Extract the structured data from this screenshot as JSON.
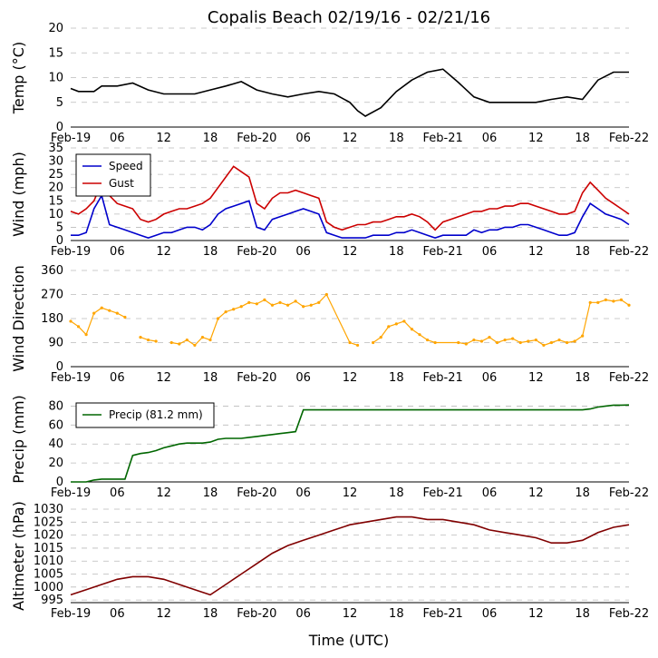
{
  "title": "Copalis Beach 02/19/16 - 02/21/16",
  "xlabel": "Time (UTC)",
  "x_tick_labels": [
    "Feb-19",
    "06",
    "12",
    "18",
    "Feb-20",
    "06",
    "12",
    "18",
    "Feb-21",
    "06",
    "12",
    "18",
    "Feb-22"
  ],
  "chart_data": [
    {
      "type": "line",
      "ylabel": "Temp (°C)",
      "ylim": [
        0,
        20
      ],
      "yticks": [
        0,
        5,
        10,
        15,
        20
      ],
      "grid": true,
      "x_units": "hours since Feb-19 00:00 UTC",
      "series": [
        {
          "color": "#000000",
          "x": [
            0,
            1,
            3,
            4,
            6,
            8,
            10,
            12,
            14,
            16,
            18,
            20,
            22,
            24,
            26,
            28,
            30,
            32,
            34,
            36,
            37,
            38,
            40,
            42,
            44,
            46,
            48,
            50,
            52,
            54,
            56,
            58,
            60,
            62,
            64,
            66,
            68,
            70,
            72
          ],
          "y": [
            7.8,
            7.2,
            7.2,
            8.3,
            8.3,
            8.9,
            7.5,
            6.7,
            6.7,
            6.7,
            7.5,
            8.3,
            9.2,
            7.5,
            6.7,
            6.1,
            6.7,
            7.2,
            6.7,
            5,
            3.3,
            2.2,
            3.9,
            7.2,
            9.5,
            11.1,
            11.7,
            9,
            6.1,
            5,
            5,
            5,
            5,
            5.6,
            6.1,
            5.6,
            9.5,
            11.1,
            11.1
          ]
        }
      ]
    },
    {
      "type": "line",
      "ylabel": "Wind (mph)",
      "ylim": [
        0,
        35
      ],
      "yticks": [
        0,
        5,
        10,
        15,
        20,
        25,
        30,
        35
      ],
      "grid": true,
      "legend": "upper-left",
      "series": [
        {
          "name": "Speed",
          "color": "#0000cc",
          "x": [
            0,
            1,
            2,
            3,
            4,
            5,
            6,
            7,
            8,
            9,
            10,
            11,
            12,
            13,
            14,
            15,
            16,
            17,
            18,
            19,
            20,
            21,
            22,
            23,
            24,
            25,
            26,
            27,
            28,
            29,
            30,
            31,
            32,
            33,
            34,
            35,
            36,
            37,
            38,
            39,
            40,
            41,
            42,
            43,
            44,
            45,
            46,
            47,
            48,
            49,
            50,
            51,
            52,
            53,
            54,
            55,
            56,
            57,
            58,
            59,
            60,
            61,
            62,
            63,
            64,
            65,
            66,
            67,
            68,
            69,
            70,
            71,
            72
          ],
          "y": [
            2,
            2,
            3,
            12,
            17,
            6,
            5,
            4,
            3,
            2,
            1,
            2,
            3,
            3,
            4,
            5,
            5,
            4,
            6,
            10,
            12,
            13,
            14,
            15,
            5,
            4,
            8,
            9,
            10,
            11,
            12,
            11,
            10,
            3,
            2,
            1,
            1,
            1,
            1,
            2,
            2,
            2,
            3,
            3,
            4,
            3,
            2,
            1,
            2,
            2,
            2,
            2,
            4,
            3,
            4,
            4,
            5,
            5,
            6,
            6,
            5,
            4,
            3,
            2,
            2,
            3,
            9,
            14,
            12,
            10,
            9,
            8,
            6
          ]
        },
        {
          "name": "Gust",
          "color": "#cc0000",
          "x": [
            0,
            1,
            2,
            3,
            4,
            5,
            6,
            7,
            8,
            9,
            10,
            11,
            12,
            13,
            14,
            15,
            16,
            17,
            18,
            19,
            20,
            21,
            22,
            23,
            24,
            25,
            26,
            27,
            28,
            29,
            30,
            31,
            32,
            33,
            34,
            35,
            36,
            37,
            38,
            39,
            40,
            41,
            42,
            43,
            44,
            45,
            46,
            47,
            48,
            49,
            50,
            51,
            52,
            53,
            54,
            55,
            56,
            57,
            58,
            59,
            60,
            61,
            62,
            63,
            64,
            65,
            66,
            67,
            68,
            69,
            70,
            71,
            72
          ],
          "y": [
            11,
            10,
            12,
            15,
            22,
            17,
            14,
            13,
            12,
            8,
            7,
            8,
            10,
            11,
            12,
            12,
            13,
            14,
            16,
            20,
            24,
            28,
            26,
            24,
            14,
            12,
            16,
            18,
            18,
            19,
            18,
            17,
            16,
            7,
            5,
            4,
            5,
            6,
            6,
            7,
            7,
            8,
            9,
            9,
            10,
            9,
            7,
            4,
            7,
            8,
            9,
            10,
            11,
            11,
            12,
            12,
            13,
            13,
            14,
            14,
            13,
            12,
            11,
            10,
            10,
            11,
            18,
            22,
            19,
            16,
            14,
            12,
            10
          ]
        }
      ]
    },
    {
      "type": "scatter",
      "ylabel": "Wind Direction",
      "ylim": [
        0,
        360
      ],
      "yticks": [
        0,
        90,
        180,
        270,
        360
      ],
      "grid": true,
      "series": [
        {
          "color": "#ffa500",
          "x": [
            0,
            1,
            2,
            3,
            4,
            5,
            6,
            7,
            8,
            9,
            10,
            11,
            12,
            13,
            14,
            15,
            16,
            17,
            18,
            19,
            20,
            21,
            22,
            23,
            24,
            25,
            26,
            27,
            28,
            29,
            30,
            31,
            32,
            33,
            36,
            37,
            38,
            39,
            40,
            41,
            42,
            43,
            44,
            45,
            46,
            47,
            50,
            51,
            52,
            53,
            54,
            55,
            56,
            57,
            58,
            59,
            60,
            61,
            62,
            63,
            64,
            65,
            66,
            67,
            68,
            69,
            70,
            71,
            72
          ],
          "y": [
            170,
            150,
            120,
            200,
            220,
            210,
            200,
            185,
            null,
            110,
            100,
            95,
            null,
            90,
            85,
            100,
            80,
            110,
            100,
            180,
            205,
            215,
            225,
            240,
            235,
            250,
            230,
            240,
            230,
            245,
            225,
            230,
            240,
            270,
            90,
            80,
            null,
            90,
            110,
            150,
            160,
            170,
            140,
            120,
            100,
            90,
            90,
            85,
            100,
            95,
            110,
            90,
            100,
            105,
            90,
            95,
            100,
            80,
            90,
            100,
            90,
            95,
            115,
            240,
            240,
            250,
            245,
            250,
            230
          ]
        }
      ]
    },
    {
      "type": "line",
      "ylabel": "Precip (mm)",
      "ylim": [
        0,
        90
      ],
      "yticks": [
        0,
        20,
        40,
        60,
        80
      ],
      "grid": true,
      "legend": "upper-left",
      "series": [
        {
          "name": "Precip (81.2 mm)",
          "color": "#006600",
          "x": [
            0,
            2,
            3,
            4,
            5,
            6,
            7,
            8,
            9,
            10,
            11,
            12,
            13,
            14,
            15,
            16,
            17,
            18,
            19,
            20,
            21,
            22,
            23,
            24,
            25,
            26,
            27,
            28,
            29,
            30,
            31,
            32,
            33,
            34,
            40,
            46,
            52,
            58,
            64,
            65,
            66,
            67,
            68,
            69,
            70,
            71,
            72
          ],
          "y": [
            0,
            0,
            2,
            3,
            3,
            3,
            3,
            28,
            30,
            31,
            33,
            36,
            38,
            40,
            41,
            41,
            41,
            42,
            45,
            46,
            46,
            46,
            47,
            48,
            49,
            50,
            51,
            52,
            53,
            76,
            76,
            76,
            76,
            76,
            76,
            76,
            76,
            76,
            76,
            76,
            76,
            77,
            79,
            80,
            81,
            81,
            81.2
          ]
        }
      ]
    },
    {
      "type": "line",
      "ylabel": "Altimeter (hPa)",
      "ylim": [
        994,
        1030
      ],
      "yticks": [
        995,
        1000,
        1005,
        1010,
        1015,
        1020,
        1025,
        1030
      ],
      "grid": true,
      "series": [
        {
          "color": "#800000",
          "x": [
            0,
            2,
            4,
            6,
            8,
            10,
            12,
            14,
            16,
            18,
            20,
            22,
            24,
            26,
            28,
            30,
            32,
            34,
            36,
            38,
            40,
            42,
            44,
            46,
            48,
            50,
            52,
            54,
            56,
            58,
            60,
            62,
            64,
            66,
            68,
            70,
            72
          ],
          "y": [
            997,
            999,
            1001,
            1003,
            1004,
            1004,
            1003,
            1001,
            999,
            997,
            1001,
            1005,
            1009,
            1013,
            1016,
            1018,
            1020,
            1022,
            1024,
            1025,
            1026,
            1027,
            1027,
            1026,
            1026,
            1025,
            1024,
            1022,
            1021,
            1020,
            1019,
            1017,
            1017,
            1018,
            1021,
            1023,
            1024
          ]
        }
      ]
    }
  ]
}
